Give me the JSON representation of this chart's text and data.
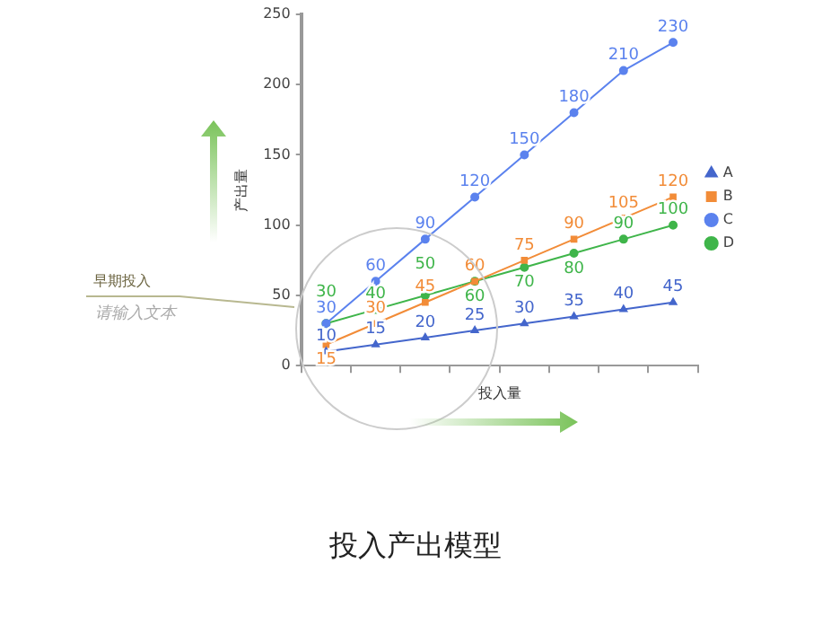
{
  "chart_data": {
    "type": "line",
    "title": "投入产出模型",
    "xlabel": "投入量",
    "ylabel": "产出量",
    "categories": [
      null,
      null,
      null,
      null,
      null,
      null,
      null,
      null
    ],
    "series": [
      {
        "name": "A",
        "color": "#4466cc",
        "marker": "triangle",
        "values": [
          10,
          15,
          20,
          25,
          30,
          35,
          40,
          45
        ]
      },
      {
        "name": "B",
        "color": "#f28c38",
        "marker": "square",
        "values": [
          15,
          30,
          45,
          60,
          75,
          90,
          105,
          120
        ]
      },
      {
        "name": "C",
        "color": "#5b82ee",
        "marker": "circle",
        "values": [
          30,
          60,
          90,
          120,
          150,
          180,
          210,
          230
        ]
      },
      {
        "name": "D",
        "color": "#3fb54a",
        "marker": "circle",
        "values": [
          30,
          40,
          50,
          60,
          70,
          80,
          90,
          100
        ]
      }
    ],
    "ylim": [
      0,
      250
    ],
    "yticks": [
      0,
      50,
      100,
      150,
      200,
      250
    ],
    "grid": false,
    "legend": "right",
    "data_labels": true,
    "annotations": [
      "早期投入",
      "请输入文本"
    ]
  }
}
